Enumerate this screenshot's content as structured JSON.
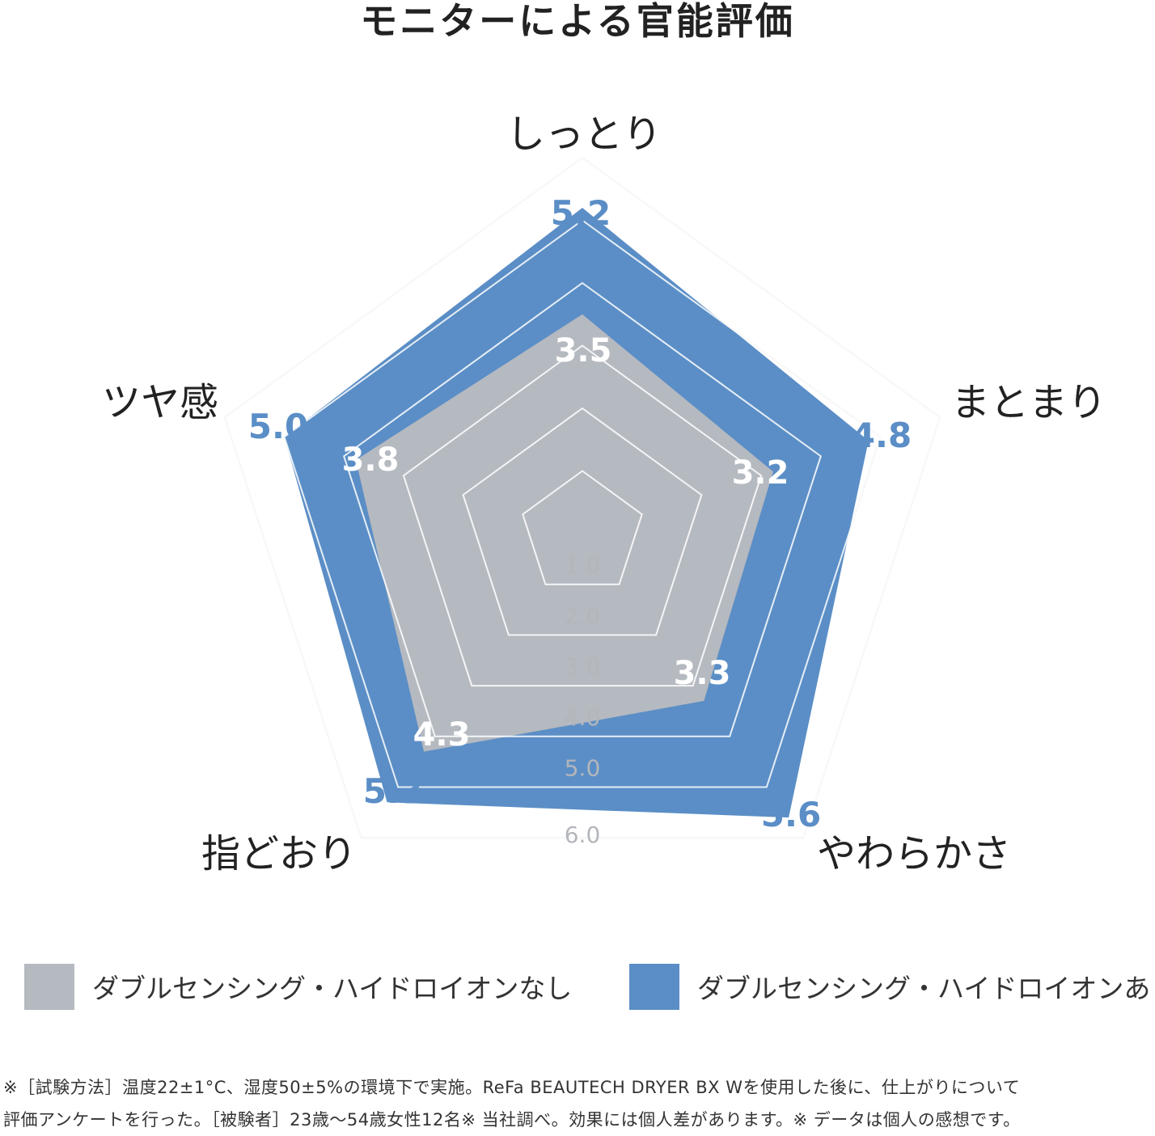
{
  "chart_data": {
    "type": "radar",
    "title": "モニターによる官能評価",
    "axes": [
      "しっとり",
      "まとまり",
      "やわらかさ",
      "指どおり",
      "ツヤ感"
    ],
    "rlim": [
      0,
      6
    ],
    "rings": [
      "1.0",
      "2.0",
      "3.0",
      "4.0",
      "5.0",
      "6.0"
    ],
    "series": [
      {
        "name": "ダブルセンシング・ハイドロイオンあり",
        "values": [
          5.2,
          4.8,
          5.6,
          5.3,
          5.0
        ],
        "labels": [
          "5.2",
          "4.8",
          "5.6",
          "5.3",
          "5.0"
        ],
        "color": "#5b8ec6"
      },
      {
        "name": "ダブルセンシング・ハイドロイオンなし",
        "values": [
          3.5,
          3.2,
          3.3,
          4.3,
          3.8
        ],
        "labels": [
          "3.5",
          "3.2",
          "3.3",
          "4.3",
          "3.8"
        ],
        "color": "#b5b9c0"
      }
    ],
    "grid": true,
    "legend": "bottom"
  },
  "legend": {
    "without_label": "ダブルセンシング・ハイドロイオンなし",
    "with_label": "ダブルセンシング・ハイドロイオンあり",
    "without_color": "#b5b9c0",
    "with_color": "#5b8ec6"
  },
  "footnote": {
    "line1": "※［試験方法］温度22±1°C、湿度50±5%の環境下で実施。ReFa BEAUTECH DRYER BX Wを使用した後に、仕上がりについて",
    "line2": "評価アンケートを行った。［被験者］23歳〜54歳女性12名※ 当社調べ。効果には個人差があります。※ データは個人の感想です。"
  }
}
